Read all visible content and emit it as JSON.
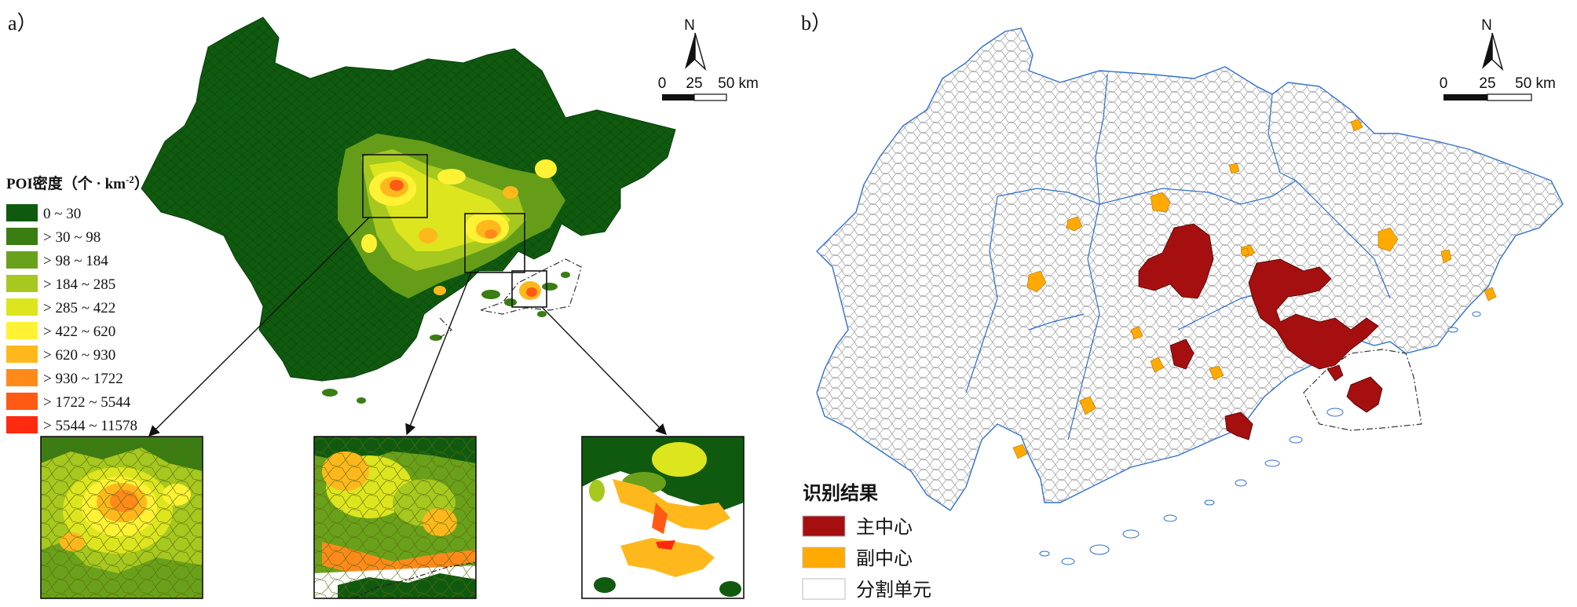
{
  "panel_a": {
    "label": "a）",
    "legend_title": "POI密度（个 · km",
    "legend_title_sup": "-2",
    "legend_title_end": "）",
    "classes": [
      {
        "label": "0 ~ 30",
        "color": "#0f5a0f"
      },
      {
        "label": "> 30 ~ 98",
        "color": "#3a7d13"
      },
      {
        "label": "> 98 ~ 184",
        "color": "#6aa11a"
      },
      {
        "label": "> 184 ~ 285",
        "color": "#a6c81f"
      },
      {
        "label": "> 285 ~ 422",
        "color": "#dde51e"
      },
      {
        "label": "> 422 ~ 620",
        "color": "#fff235"
      },
      {
        "label": "> 620 ~ 930",
        "color": "#ffb81c"
      },
      {
        "label": "> 930 ~ 1722",
        "color": "#ff8a1a"
      },
      {
        "label": "> 1722 ~ 5544",
        "color": "#ff5a14"
      },
      {
        "label": "> 5544 ~ 11578",
        "color": "#ff2a10"
      }
    ],
    "north": "N",
    "scale_labels": [
      "0",
      "25",
      "50 km"
    ]
  },
  "panel_b": {
    "label": "b）",
    "north": "N",
    "scale_labels": [
      "0",
      "25",
      "50 km"
    ],
    "legend_title": "识别结果",
    "legend_items": [
      {
        "label": "主中心",
        "color": "#a50f0f"
      },
      {
        "label": "副中心",
        "color": "#ffaa00"
      },
      {
        "label": "分割单元",
        "color": "#ffffff"
      }
    ]
  }
}
